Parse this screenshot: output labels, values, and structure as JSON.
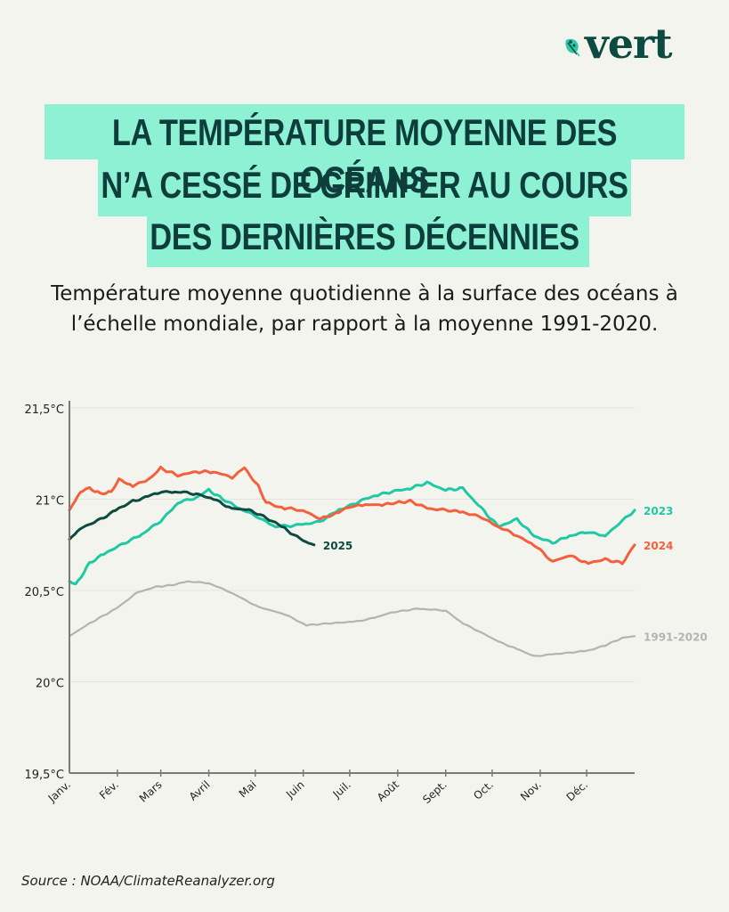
{
  "brand": {
    "logo_text": "vert",
    "logo_icon": "leaf-icon"
  },
  "title_lines": [
    "LA TEMPÉRATURE MOYENNE DES OCÉANS",
    "N’A CESSÉ DE GRIMPER AU COURS",
    "DES DERNIÈRES DÉCENNIES"
  ],
  "subtitle": "Température moyenne quotidienne à la surface des océans à l’échelle mondiale, par rapport à la moyenne 1991-2020.",
  "source": "Source : NOAA/ClimateReanalyzer.org",
  "colors": {
    "accent_band": "#8ef1d4",
    "title_text": "#0d3e3b",
    "s2023": "#1ec9a4",
    "s2024": "#f4603d",
    "s2025": "#0d4a40",
    "baseline": "#b3b3b3"
  },
  "chart_data": {
    "type": "line",
    "title": "Température moyenne quotidienne à la surface des océans à l’échelle mondiale",
    "xlabel": "",
    "ylabel": "",
    "x_unit": "day of year",
    "xlim": [
      0,
      365
    ],
    "ylim": [
      19.5,
      21.5
    ],
    "grid": true,
    "y_ticks": [
      {
        "value": 21.5,
        "label": "21,5°C"
      },
      {
        "value": 21.0,
        "label": "21°C"
      },
      {
        "value": 20.5,
        "label": "20,5°C"
      },
      {
        "value": 20.0,
        "label": "20°C"
      },
      {
        "value": 19.5,
        "label": "19,5°C"
      }
    ],
    "x_ticks": [
      {
        "day": 0,
        "label": "Janv."
      },
      {
        "day": 31,
        "label": "Fév."
      },
      {
        "day": 59,
        "label": "Mars"
      },
      {
        "day": 90,
        "label": "Avril"
      },
      {
        "day": 120,
        "label": "Mai"
      },
      {
        "day": 151,
        "label": "Juin"
      },
      {
        "day": 181,
        "label": "Juil."
      },
      {
        "day": 212,
        "label": "Août"
      },
      {
        "day": 243,
        "label": "Sept."
      },
      {
        "day": 273,
        "label": "Oct."
      },
      {
        "day": 304,
        "label": "Nov."
      },
      {
        "day": 334,
        "label": "Déc."
      }
    ],
    "legend": "inline-labels-right",
    "series": [
      {
        "name": "1991-2020",
        "color_key": "baseline",
        "x": [
          0,
          13,
          30,
          44,
          56,
          67,
          76,
          90,
          104,
          122,
          139,
          153,
          168,
          185,
          197,
          208,
          225,
          243,
          254,
          266,
          277,
          289,
          300,
          312,
          323,
          335,
          346,
          357,
          365
        ],
        "y": [
          20.25,
          20.32,
          20.4,
          20.49,
          20.52,
          20.53,
          20.55,
          20.54,
          20.49,
          20.41,
          20.37,
          20.31,
          20.32,
          20.33,
          20.35,
          20.38,
          20.4,
          20.39,
          20.32,
          20.27,
          20.22,
          20.18,
          20.14,
          20.15,
          20.16,
          20.17,
          20.2,
          20.24,
          20.25
        ]
      },
      {
        "name": "2023",
        "color_key": "s2023",
        "x": [
          0,
          4,
          13,
          24,
          36,
          47,
          59,
          70,
          82,
          90,
          99,
          110,
          122,
          133,
          151,
          162,
          174,
          185,
          197,
          208,
          220,
          231,
          243,
          254,
          266,
          277,
          289,
          300,
          312,
          323,
          335,
          346,
          357,
          365
        ],
        "y": [
          20.55,
          20.53,
          20.65,
          20.71,
          20.76,
          20.81,
          20.88,
          20.98,
          21.01,
          21.05,
          21.0,
          20.95,
          20.9,
          20.85,
          20.86,
          20.88,
          20.94,
          20.98,
          21.02,
          21.04,
          21.06,
          21.09,
          21.05,
          21.06,
          20.95,
          20.85,
          20.89,
          20.8,
          20.76,
          20.8,
          20.82,
          20.8,
          20.88,
          20.94
        ]
      },
      {
        "name": "2024",
        "color_key": "s2024",
        "x": [
          0,
          7,
          13,
          20,
          27,
          32,
          41,
          53,
          59,
          70,
          82,
          93,
          105,
          113,
          122,
          127,
          139,
          151,
          162,
          174,
          182,
          191,
          202,
          211,
          220,
          231,
          243,
          254,
          266,
          277,
          289,
          300,
          312,
          323,
          335,
          346,
          357,
          365
        ],
        "y": [
          20.94,
          21.04,
          21.06,
          21.03,
          21.04,
          21.11,
          21.07,
          21.12,
          21.17,
          21.13,
          21.15,
          21.15,
          21.12,
          21.17,
          21.07,
          20.98,
          20.95,
          20.94,
          20.89,
          20.93,
          20.96,
          20.97,
          20.97,
          20.98,
          20.99,
          20.95,
          20.94,
          20.93,
          20.9,
          20.85,
          20.8,
          20.75,
          20.66,
          20.69,
          20.65,
          20.67,
          20.65,
          20.75
        ]
      },
      {
        "name": "2025",
        "color_key": "s2025",
        "x": [
          0,
          7,
          18,
          30,
          41,
          53,
          59,
          70,
          82,
          93,
          105,
          116,
          127,
          139,
          151,
          158
        ],
        "y": [
          20.78,
          20.84,
          20.88,
          20.94,
          20.99,
          21.02,
          21.04,
          21.04,
          21.03,
          21.0,
          20.95,
          20.94,
          20.9,
          20.84,
          20.77,
          20.75
        ]
      }
    ]
  }
}
